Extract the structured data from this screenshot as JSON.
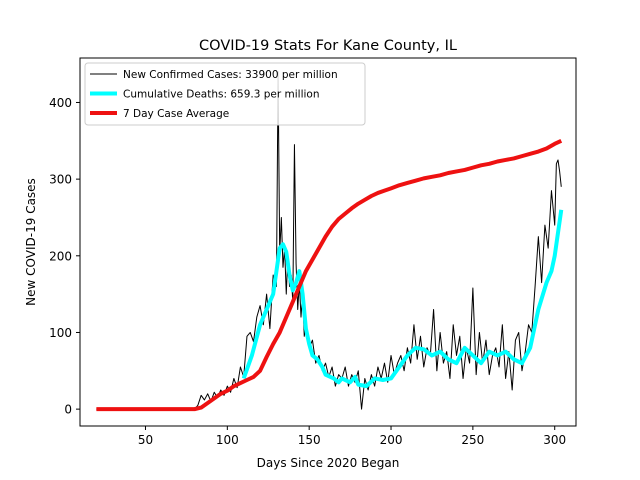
{
  "chart_data": {
    "type": "line",
    "title": "COVID-19 Stats For Kane County, IL",
    "xlabel": "Days Since 2020 Began",
    "ylabel": "New COVID-19 Cases",
    "xlim": [
      10,
      313
    ],
    "ylim": [
      -22,
      458
    ],
    "x_ticks": [
      50,
      100,
      150,
      200,
      250,
      300
    ],
    "y_ticks": [
      0,
      100,
      200,
      300,
      400
    ],
    "grid": false,
    "legend_position": "top-left",
    "series": [
      {
        "name": "New Confirmed Cases: 33900 per million",
        "color": "#000000",
        "line_width": 1,
        "points": [
          [
            20,
            0
          ],
          [
            30,
            0
          ],
          [
            40,
            0
          ],
          [
            50,
            0
          ],
          [
            60,
            0
          ],
          [
            70,
            0
          ],
          [
            80,
            0
          ],
          [
            82,
            5
          ],
          [
            84,
            18
          ],
          [
            86,
            12
          ],
          [
            88,
            20
          ],
          [
            90,
            10
          ],
          [
            92,
            22
          ],
          [
            94,
            15
          ],
          [
            96,
            25
          ],
          [
            98,
            18
          ],
          [
            100,
            30
          ],
          [
            102,
            22
          ],
          [
            104,
            40
          ],
          [
            106,
            28
          ],
          [
            108,
            55
          ],
          [
            110,
            42
          ],
          [
            112,
            95
          ],
          [
            114,
            100
          ],
          [
            116,
            88
          ],
          [
            118,
            120
          ],
          [
            120,
            135
          ],
          [
            122,
            110
          ],
          [
            124,
            150
          ],
          [
            126,
            105
          ],
          [
            128,
            175
          ],
          [
            130,
            160
          ],
          [
            131,
            440
          ],
          [
            132,
            205
          ],
          [
            133,
            250
          ],
          [
            134,
            185
          ],
          [
            135,
            210
          ],
          [
            136,
            150
          ],
          [
            137,
            200
          ],
          [
            138,
            160
          ],
          [
            139,
            175
          ],
          [
            140,
            140
          ],
          [
            141,
            345
          ],
          [
            142,
            190
          ],
          [
            143,
            130
          ],
          [
            144,
            165
          ],
          [
            145,
            120
          ],
          [
            146,
            150
          ],
          [
            147,
            95
          ],
          [
            148,
            110
          ],
          [
            150,
            80
          ],
          [
            152,
            90
          ],
          [
            154,
            60
          ],
          [
            156,
            70
          ],
          [
            158,
            50
          ],
          [
            160,
            60
          ],
          [
            162,
            42
          ],
          [
            164,
            55
          ],
          [
            166,
            30
          ],
          [
            168,
            45
          ],
          [
            170,
            40
          ],
          [
            172,
            55
          ],
          [
            174,
            30
          ],
          [
            176,
            45
          ],
          [
            178,
            35
          ],
          [
            180,
            50
          ],
          [
            182,
            0
          ],
          [
            184,
            40
          ],
          [
            186,
            25
          ],
          [
            188,
            45
          ],
          [
            190,
            30
          ],
          [
            192,
            55
          ],
          [
            194,
            40
          ],
          [
            196,
            60
          ],
          [
            198,
            35
          ],
          [
            200,
            70
          ],
          [
            202,
            45
          ],
          [
            204,
            60
          ],
          [
            206,
            70
          ],
          [
            208,
            50
          ],
          [
            210,
            80
          ],
          [
            212,
            60
          ],
          [
            214,
            110
          ],
          [
            216,
            65
          ],
          [
            218,
            95
          ],
          [
            220,
            55
          ],
          [
            222,
            80
          ],
          [
            224,
            70
          ],
          [
            226,
            130
          ],
          [
            228,
            50
          ],
          [
            230,
            100
          ],
          [
            232,
            60
          ],
          [
            234,
            75
          ],
          [
            236,
            40
          ],
          [
            238,
            110
          ],
          [
            240,
            70
          ],
          [
            242,
            95
          ],
          [
            244,
            40
          ],
          [
            246,
            80
          ],
          [
            248,
            60
          ],
          [
            250,
            158
          ],
          [
            252,
            45
          ],
          [
            254,
            100
          ],
          [
            256,
            60
          ],
          [
            258,
            90
          ],
          [
            260,
            45
          ],
          [
            262,
            70
          ],
          [
            264,
            80
          ],
          [
            266,
            55
          ],
          [
            268,
            110
          ],
          [
            270,
            40
          ],
          [
            272,
            75
          ],
          [
            274,
            25
          ],
          [
            276,
            90
          ],
          [
            278,
            100
          ],
          [
            280,
            50
          ],
          [
            282,
            75
          ],
          [
            284,
            110
          ],
          [
            286,
            100
          ],
          [
            288,
            160
          ],
          [
            290,
            225
          ],
          [
            292,
            165
          ],
          [
            294,
            240
          ],
          [
            296,
            210
          ],
          [
            298,
            285
          ],
          [
            300,
            240
          ],
          [
            301,
            320
          ],
          [
            302,
            325
          ],
          [
            303,
            310
          ],
          [
            304,
            290
          ]
        ]
      },
      {
        "name": "Cumulative Deaths: 659.3 per million",
        "color": "#00ffff",
        "line_width": 4,
        "points": [
          [
            110,
            40
          ],
          [
            115,
            70
          ],
          [
            120,
            110
          ],
          [
            125,
            135
          ],
          [
            128,
            150
          ],
          [
            130,
            180
          ],
          [
            132,
            210
          ],
          [
            134,
            215
          ],
          [
            136,
            205
          ],
          [
            138,
            175
          ],
          [
            140,
            155
          ],
          [
            142,
            165
          ],
          [
            144,
            180
          ],
          [
            146,
            150
          ],
          [
            148,
            105
          ],
          [
            150,
            85
          ],
          [
            152,
            70
          ],
          [
            155,
            65
          ],
          [
            158,
            55
          ],
          [
            160,
            45
          ],
          [
            165,
            40
          ],
          [
            168,
            35
          ],
          [
            170,
            40
          ],
          [
            175,
            35
          ],
          [
            178,
            42
          ],
          [
            180,
            32
          ],
          [
            185,
            30
          ],
          [
            190,
            40
          ],
          [
            195,
            38
          ],
          [
            200,
            40
          ],
          [
            205,
            55
          ],
          [
            210,
            70
          ],
          [
            215,
            80
          ],
          [
            220,
            78
          ],
          [
            225,
            70
          ],
          [
            230,
            75
          ],
          [
            235,
            65
          ],
          [
            240,
            60
          ],
          [
            245,
            80
          ],
          [
            250,
            70
          ],
          [
            255,
            60
          ],
          [
            260,
            75
          ],
          [
            265,
            70
          ],
          [
            270,
            75
          ],
          [
            275,
            65
          ],
          [
            280,
            60
          ],
          [
            285,
            80
          ],
          [
            290,
            130
          ],
          [
            295,
            165
          ],
          [
            298,
            180
          ],
          [
            300,
            200
          ],
          [
            302,
            230
          ],
          [
            304,
            260
          ]
        ]
      },
      {
        "name": "7 Day Case Average",
        "color": "#ee1111",
        "line_width": 4,
        "points": [
          [
            20,
            0
          ],
          [
            30,
            0
          ],
          [
            40,
            0
          ],
          [
            50,
            0
          ],
          [
            60,
            0
          ],
          [
            70,
            0
          ],
          [
            80,
            0
          ],
          [
            84,
            2
          ],
          [
            88,
            8
          ],
          [
            92,
            14
          ],
          [
            96,
            20
          ],
          [
            100,
            24
          ],
          [
            104,
            30
          ],
          [
            108,
            34
          ],
          [
            112,
            38
          ],
          [
            116,
            42
          ],
          [
            120,
            50
          ],
          [
            124,
            68
          ],
          [
            128,
            85
          ],
          [
            132,
            100
          ],
          [
            136,
            120
          ],
          [
            140,
            140
          ],
          [
            144,
            160
          ],
          [
            148,
            180
          ],
          [
            152,
            195
          ],
          [
            156,
            210
          ],
          [
            160,
            225
          ],
          [
            164,
            238
          ],
          [
            168,
            248
          ],
          [
            172,
            255
          ],
          [
            176,
            262
          ],
          [
            180,
            268
          ],
          [
            184,
            273
          ],
          [
            188,
            278
          ],
          [
            192,
            282
          ],
          [
            196,
            285
          ],
          [
            200,
            288
          ],
          [
            205,
            292
          ],
          [
            210,
            295
          ],
          [
            215,
            298
          ],
          [
            220,
            301
          ],
          [
            225,
            303
          ],
          [
            230,
            305
          ],
          [
            235,
            308
          ],
          [
            240,
            310
          ],
          [
            245,
            312
          ],
          [
            250,
            315
          ],
          [
            255,
            318
          ],
          [
            260,
            320
          ],
          [
            265,
            323
          ],
          [
            270,
            325
          ],
          [
            275,
            327
          ],
          [
            280,
            330
          ],
          [
            285,
            333
          ],
          [
            290,
            336
          ],
          [
            295,
            340
          ],
          [
            300,
            346
          ],
          [
            304,
            350
          ]
        ]
      }
    ]
  }
}
